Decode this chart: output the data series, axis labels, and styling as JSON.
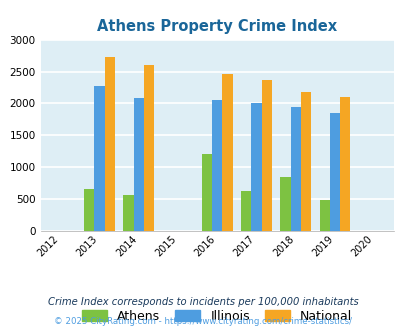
{
  "title": "Athens Property Crime Index",
  "years": [
    2012,
    2013,
    2014,
    2015,
    2016,
    2017,
    2018,
    2019,
    2020
  ],
  "data": {
    "Athens": [
      null,
      660,
      570,
      null,
      1200,
      620,
      840,
      480,
      null
    ],
    "Illinois": [
      null,
      2270,
      2090,
      null,
      2050,
      2010,
      1940,
      1850,
      null
    ],
    "National": [
      null,
      2730,
      2600,
      null,
      2460,
      2360,
      2180,
      2100,
      null
    ]
  },
  "colors": {
    "Athens": "#7dc242",
    "Illinois": "#4e9de0",
    "National": "#f5a623"
  },
  "ylim": [
    0,
    3000
  ],
  "yticks": [
    0,
    500,
    1000,
    1500,
    2000,
    2500,
    3000
  ],
  "bg_color": "#deeef5",
  "grid_color": "#ffffff",
  "bar_width": 0.26,
  "legend_labels": [
    "Athens",
    "Illinois",
    "National"
  ],
  "footnote1": "Crime Index corresponds to incidents per 100,000 inhabitants",
  "footnote2": "© 2025 CityRating.com - https://www.cityrating.com/crime-statistics/",
  "title_color": "#1a6699",
  "footnote1_color": "#1a3a5c",
  "footnote2_color": "#4e9de0"
}
